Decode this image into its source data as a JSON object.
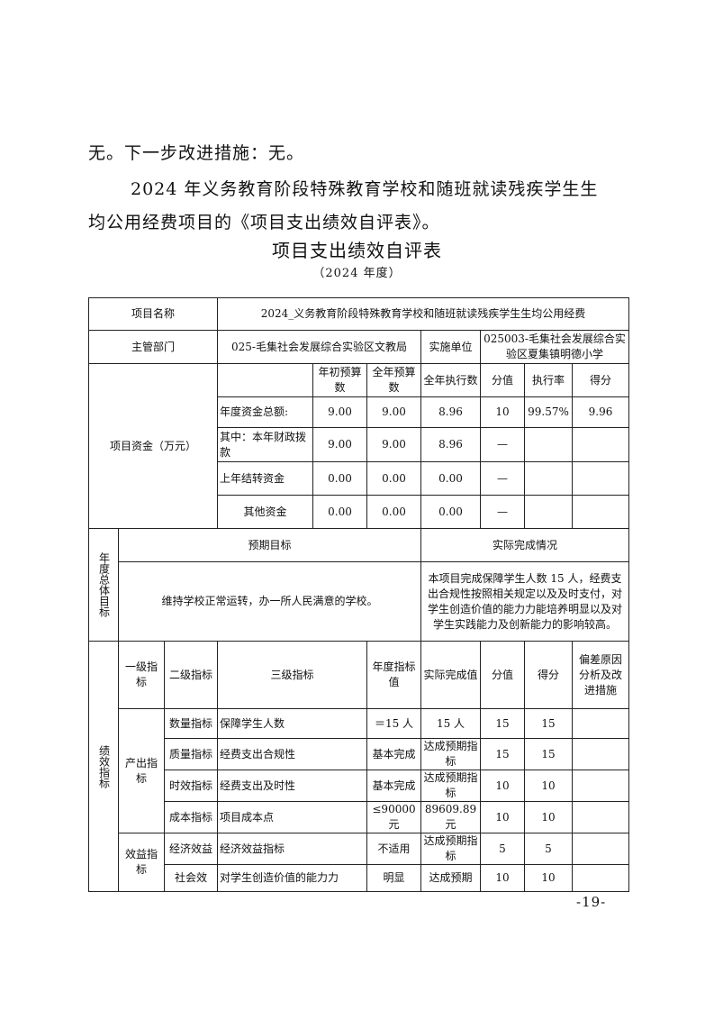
{
  "text": {
    "line1": "无。下一步改进措施：无。",
    "line2": "2024 年义务教育阶段特殊教育学校和随班就读残疾学生生",
    "line3": "均公用经费项目的《项目支出绩效自评表》。",
    "title": "项目支出绩效自评表",
    "subtitle": "（2024 年度）",
    "page_number": "-19-"
  },
  "table": {
    "project_name_label": "项目名称",
    "project_name": "2024_义务教育阶段特殊教育学校和随班就读残疾学生生均公用经费",
    "dept_label": "主管部门",
    "dept": "025-毛集社会发展综合实验区文教局",
    "unit_label": "实施单位",
    "unit": "025003-毛集社会发展综合实验区夏集镇明德小学",
    "funds_label": "项目资金（万元）",
    "funds_headers": [
      "年初预算数",
      "全年预算数",
      "全年执行数",
      "分值",
      "执行率",
      "得分"
    ],
    "funds_rows": [
      {
        "label": "年度资金总额:",
        "v": [
          "9.00",
          "9.00",
          "8.96",
          "10",
          "99.57%",
          "9.96"
        ]
      },
      {
        "label": "其中：本年财政拨款",
        "v": [
          "9.00",
          "9.00",
          "8.96",
          "—",
          "",
          ""
        ]
      },
      {
        "label": "上年结转资金",
        "v": [
          "0.00",
          "0.00",
          "0.00",
          "—",
          "",
          ""
        ]
      },
      {
        "label": "其他资金",
        "v": [
          "0.00",
          "0.00",
          "0.00",
          "—",
          "",
          ""
        ]
      }
    ],
    "goal_label": "年度总体目标",
    "expected_label": "预期目标",
    "actual_label": "实际完成情况",
    "expected": "维持学校正常运转，办一所人民满意的学校。",
    "actual": "本项目完成保障学生人数 15 人，经费支出合规性按照相关规定以及及时支付，对学生创造价值的能力力能培养明显以及对学生实践能力及创新能力的影响较高。",
    "perf_label": "绩效指标",
    "perf_headers": [
      "一级指标",
      "二级指标",
      "三级指标",
      "年度指标值",
      "实际完成值",
      "分值",
      "得分",
      "偏差原因分析及改进措施"
    ],
    "output_label": "产出指标",
    "benefit_label": "效益指标",
    "perf_rows": [
      {
        "l2": "数量指标",
        "l3": "保障学生人数",
        "target": "＝15 人",
        "actual": "15 人",
        "score": "15",
        "got": "15",
        "note": ""
      },
      {
        "l2": "质量指标",
        "l3": "经费支出合规性",
        "target": "基本完成",
        "actual": "达成预期指标",
        "score": "15",
        "got": "15",
        "note": ""
      },
      {
        "l2": "时效指标",
        "l3": "经费支出及时性",
        "target": "基本完成",
        "actual": "达成预期指标",
        "score": "10",
        "got": "10",
        "note": ""
      },
      {
        "l2": "成本指标",
        "l3": "项目成本点",
        "target": "≤90000元",
        "actual": "89609.89元",
        "score": "10",
        "got": "10",
        "note": ""
      },
      {
        "l2": "经济效益",
        "l3": "经济效益指标",
        "target": "不适用",
        "actual": "达成预期指标",
        "score": "5",
        "got": "5",
        "note": ""
      },
      {
        "l2": "社会效",
        "l3": "对学生创造价值的能力力",
        "target": "明显",
        "actual": "达成预期",
        "score": "10",
        "got": "10",
        "note": ""
      }
    ]
  }
}
